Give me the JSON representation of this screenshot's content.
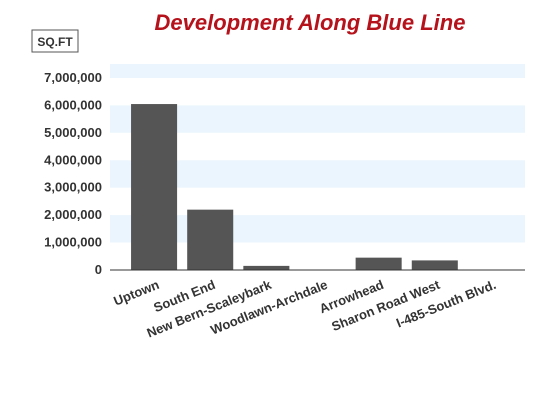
{
  "chart_data": {
    "type": "bar",
    "title": "Development Along Blue Line",
    "ylabel": "SQ.FT",
    "xlabel": "",
    "categories": [
      "Uptown",
      "South End",
      "New Bern-Scaleybark",
      "Woodlawn-Archdale",
      "Arrowhead",
      "Sharon Road West",
      "I-485-South Blvd."
    ],
    "values": [
      6050000,
      2200000,
      150000,
      0,
      450000,
      350000,
      0
    ],
    "ylim": [
      0,
      7000000
    ],
    "yticks": [
      0,
      1000000,
      2000000,
      3000000,
      4000000,
      5000000,
      6000000,
      7000000
    ],
    "ytick_labels": [
      "0",
      "1,000,000",
      "2,000,000",
      "3,000,000",
      "4,000,000",
      "5,000,000",
      "6,000,000",
      "7,000,000"
    ],
    "grid": "horizontal bands",
    "colors": {
      "bar": "#555555",
      "title": "#b5121b",
      "band_light": "#eaf5fd",
      "band_white": "#ffffff",
      "axis": "#333333"
    }
  }
}
